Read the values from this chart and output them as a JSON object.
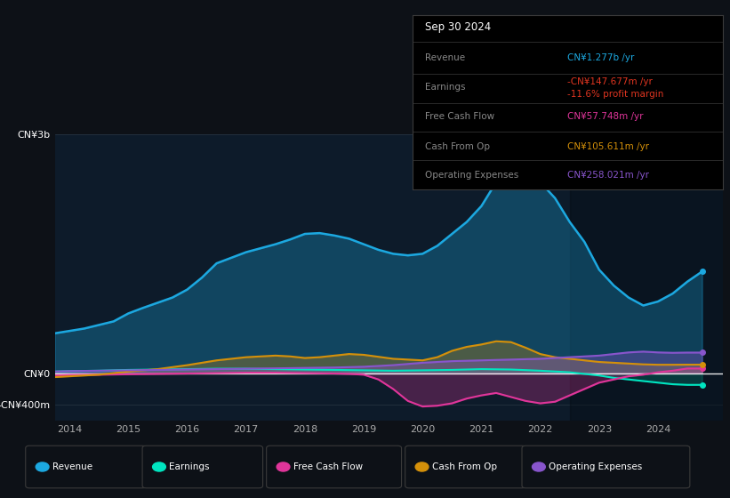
{
  "bg_color": "#0d1117",
  "plot_bg_color": "#0d1b2a",
  "ylabel_top": "CN¥3b",
  "ylabel_zero": "CN¥0",
  "ylabel_neg": "-CN¥400m",
  "x_ticks": [
    2014,
    2015,
    2016,
    2017,
    2018,
    2019,
    2020,
    2021,
    2022,
    2023,
    2024
  ],
  "ylim_top": 3000,
  "ylim_bottom": -600,
  "revenue_color": "#1ca8e0",
  "earnings_color": "#00e5c0",
  "fcf_color": "#e0359a",
  "cashfromop_color": "#d4900a",
  "opex_color": "#8855cc",
  "tooltip": {
    "date": "Sep 30 2024",
    "revenue_label": "Revenue",
    "revenue_val": "CN¥1.277b /yr",
    "revenue_color": "#1ca8e0",
    "earnings_label": "Earnings",
    "earnings_val": "-CN¥147.677m /yr",
    "earnings_color": "#e03520",
    "margin_val": "-11.6% profit margin",
    "margin_color": "#e03520",
    "fcf_label": "Free Cash Flow",
    "fcf_val": "CN¥57.748m /yr",
    "fcf_color": "#e0359a",
    "cashfromop_label": "Cash From Op",
    "cashfromop_val": "CN¥105.611m /yr",
    "cashfromop_color": "#d4900a",
    "opex_label": "Operating Expenses",
    "opex_val": "CN¥258.021m /yr",
    "opex_color": "#8855cc"
  },
  "legend": [
    {
      "label": "Revenue",
      "color": "#1ca8e0"
    },
    {
      "label": "Earnings",
      "color": "#00e5c0"
    },
    {
      "label": "Free Cash Flow",
      "color": "#e0359a"
    },
    {
      "label": "Cash From Op",
      "color": "#d4900a"
    },
    {
      "label": "Operating Expenses",
      "color": "#8855cc"
    }
  ],
  "revenue": {
    "x": [
      2013.75,
      2014.0,
      2014.25,
      2014.75,
      2015.0,
      2015.25,
      2015.75,
      2016.0,
      2016.25,
      2016.5,
      2016.75,
      2017.0,
      2017.5,
      2017.75,
      2018.0,
      2018.25,
      2018.5,
      2018.75,
      2019.0,
      2019.25,
      2019.5,
      2019.75,
      2020.0,
      2020.25,
      2020.5,
      2020.75,
      2021.0,
      2021.25,
      2021.5,
      2021.75,
      2022.0,
      2022.25,
      2022.5,
      2022.75,
      2023.0,
      2023.25,
      2023.5,
      2023.75,
      2024.0,
      2024.25,
      2024.5,
      2024.75
    ],
    "y": [
      500,
      530,
      560,
      650,
      750,
      820,
      950,
      1050,
      1200,
      1380,
      1450,
      1520,
      1620,
      1680,
      1750,
      1760,
      1730,
      1690,
      1620,
      1550,
      1500,
      1480,
      1500,
      1600,
      1750,
      1900,
      2100,
      2400,
      2700,
      2600,
      2400,
      2200,
      1900,
      1650,
      1300,
      1100,
      950,
      850,
      900,
      1000,
      1150,
      1277
    ]
  },
  "earnings": {
    "x": [
      2013.75,
      2014.0,
      2014.5,
      2015.0,
      2015.5,
      2016.0,
      2016.5,
      2017.0,
      2017.5,
      2018.0,
      2018.5,
      2019.0,
      2019.5,
      2020.0,
      2020.5,
      2021.0,
      2021.5,
      2022.0,
      2022.25,
      2022.5,
      2022.75,
      2023.0,
      2023.25,
      2023.5,
      2023.75,
      2024.0,
      2024.25,
      2024.5,
      2024.75
    ],
    "y": [
      20,
      25,
      30,
      40,
      45,
      50,
      55,
      55,
      50,
      45,
      40,
      35,
      30,
      35,
      40,
      50,
      45,
      30,
      20,
      10,
      -10,
      -30,
      -60,
      -80,
      -100,
      -120,
      -140,
      -148,
      -148
    ]
  },
  "fcf": {
    "x": [
      2013.75,
      2014.0,
      2014.5,
      2015.0,
      2015.5,
      2016.0,
      2016.5,
      2017.0,
      2017.5,
      2018.0,
      2018.5,
      2018.75,
      2019.0,
      2019.25,
      2019.5,
      2019.75,
      2020.0,
      2020.25,
      2020.5,
      2020.75,
      2021.0,
      2021.25,
      2021.5,
      2021.75,
      2022.0,
      2022.25,
      2022.5,
      2022.75,
      2023.0,
      2023.25,
      2023.5,
      2023.75,
      2024.0,
      2024.25,
      2024.5,
      2024.75
    ],
    "y": [
      -30,
      -25,
      -20,
      -15,
      -10,
      -5,
      0,
      5,
      5,
      0,
      -5,
      -10,
      -20,
      -80,
      -200,
      -350,
      -420,
      -410,
      -380,
      -320,
      -280,
      -250,
      -300,
      -350,
      -380,
      -360,
      -280,
      -200,
      -120,
      -80,
      -40,
      -20,
      10,
      30,
      58,
      58
    ]
  },
  "cashfromop": {
    "x": [
      2013.75,
      2014.0,
      2014.5,
      2015.0,
      2015.5,
      2016.0,
      2016.25,
      2016.5,
      2016.75,
      2017.0,
      2017.25,
      2017.5,
      2017.75,
      2018.0,
      2018.25,
      2018.5,
      2018.75,
      2019.0,
      2019.5,
      2020.0,
      2020.25,
      2020.5,
      2020.75,
      2021.0,
      2021.25,
      2021.5,
      2021.75,
      2022.0,
      2022.25,
      2022.5,
      2022.75,
      2023.0,
      2023.25,
      2023.5,
      2023.75,
      2024.0,
      2024.25,
      2024.5,
      2024.75
    ],
    "y": [
      -50,
      -40,
      -20,
      20,
      50,
      100,
      130,
      160,
      180,
      200,
      210,
      220,
      210,
      190,
      200,
      220,
      240,
      230,
      180,
      160,
      200,
      280,
      330,
      360,
      400,
      390,
      320,
      240,
      200,
      180,
      160,
      140,
      130,
      120,
      110,
      105,
      105,
      106,
      106
    ]
  },
  "opex": {
    "x": [
      2013.75,
      2014.0,
      2014.5,
      2015.0,
      2015.5,
      2016.0,
      2016.5,
      2017.0,
      2017.5,
      2018.0,
      2018.5,
      2019.0,
      2019.5,
      2020.0,
      2020.5,
      2021.0,
      2021.5,
      2022.0,
      2022.5,
      2023.0,
      2023.25,
      2023.5,
      2023.75,
      2024.0,
      2024.25,
      2024.5,
      2024.75
    ],
    "y": [
      20,
      25,
      30,
      35,
      40,
      45,
      50,
      55,
      60,
      65,
      70,
      80,
      100,
      130,
      150,
      160,
      170,
      180,
      200,
      220,
      240,
      260,
      270,
      260,
      255,
      258,
      258
    ]
  },
  "forecast_start": 2022.5
}
